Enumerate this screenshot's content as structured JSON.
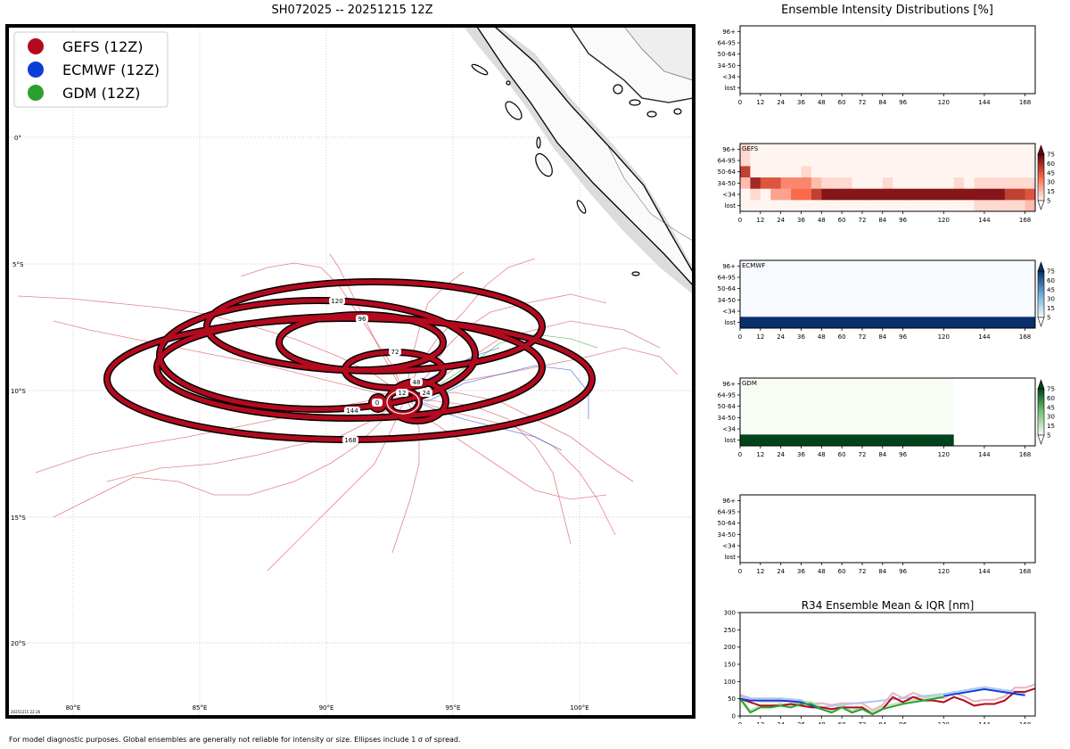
{
  "map": {
    "title": "SH072025 -- 20251215 12Z",
    "stamp": "20251215 22:26",
    "lon_ticks": [
      "80°E",
      "85°E",
      "90°E",
      "95°E",
      "100°E"
    ],
    "lat_ticks": [
      "0°",
      "5°S",
      "10°S",
      "15°S",
      "20°S"
    ],
    "legend": [
      {
        "label": "GEFS (12Z)",
        "color": "#b40a1e"
      },
      {
        "label": "ECMWF (12Z)",
        "color": "#0a3fd6"
      },
      {
        "label": "GDM (12Z)",
        "color": "#2ca02c"
      }
    ],
    "ellipse_labels": [
      "0",
      "12",
      "24",
      "48",
      "72",
      "96",
      "120",
      "144",
      "168"
    ]
  },
  "right_title": "Ensemble Intensity Distributions [%]",
  "footer": "For model diagnostic purposes. Global ensembles are generally not reliable for intensity or size. Ellipses include 1 σ of spread.",
  "panels": {
    "categories": [
      "96+",
      "64-95",
      "50-64",
      "34-50",
      "<34",
      "lost"
    ],
    "hours": [
      "0",
      "12",
      "24",
      "36",
      "48",
      "60",
      "72",
      "84",
      "96",
      "120",
      "144",
      "168"
    ],
    "hour_values": [
      0,
      12,
      24,
      36,
      48,
      60,
      72,
      84,
      96,
      120,
      144,
      168
    ],
    "colorbar_ticks": [
      "75",
      "60",
      "45",
      "30",
      "15",
      "5"
    ],
    "gefs_label": "GEFS",
    "ecmwf_label": "ECMWF",
    "gdm_label": "GDM"
  },
  "r34": {
    "title": "R34 Ensemble Mean & IQR [nm]",
    "y_ticks": [
      "300",
      "250",
      "200",
      "150",
      "100",
      "50",
      "0"
    ]
  },
  "chart_data": [
    {
      "type": "heatmap",
      "name": "GEFS",
      "x": [
        0,
        6,
        12,
        18,
        24,
        30,
        36,
        42,
        48,
        54,
        60,
        66,
        72,
        78,
        84,
        90,
        96,
        102,
        108,
        114,
        120,
        126,
        132,
        138,
        144,
        150,
        156,
        162,
        168
      ],
      "y_categories": [
        "96+",
        "64-95",
        "50-64",
        "34-50",
        "<34",
        "lost"
      ],
      "values_percent": [
        [
          10,
          0,
          0,
          0,
          0,
          0,
          0,
          0,
          0,
          0,
          0,
          0,
          0,
          0,
          0,
          0,
          0,
          0,
          0,
          0,
          0,
          0,
          0,
          0,
          0,
          0,
          0,
          0,
          0
        ],
        [
          10,
          0,
          0,
          0,
          0,
          0,
          0,
          0,
          0,
          0,
          0,
          0,
          0,
          0,
          0,
          0,
          0,
          0,
          0,
          0,
          0,
          0,
          0,
          0,
          0,
          0,
          0,
          0,
          0
        ],
        [
          70,
          0,
          0,
          0,
          0,
          0,
          10,
          0,
          0,
          0,
          0,
          0,
          0,
          0,
          0,
          0,
          0,
          0,
          0,
          0,
          0,
          0,
          0,
          0,
          0,
          0,
          0,
          0,
          0
        ],
        [
          20,
          80,
          60,
          60,
          40,
          40,
          40,
          20,
          10,
          10,
          10,
          0,
          0,
          0,
          10,
          0,
          0,
          0,
          0,
          0,
          0,
          10,
          0,
          10,
          10,
          10,
          10,
          10,
          10
        ],
        [
          0,
          10,
          0,
          30,
          30,
          50,
          50,
          70,
          90,
          90,
          90,
          90,
          90,
          90,
          90,
          90,
          90,
          90,
          90,
          90,
          90,
          90,
          90,
          90,
          90,
          90,
          70,
          70,
          60
        ],
        [
          0,
          0,
          0,
          0,
          0,
          0,
          0,
          0,
          0,
          0,
          0,
          0,
          0,
          0,
          0,
          0,
          0,
          0,
          0,
          0,
          0,
          0,
          0,
          10,
          10,
          10,
          10,
          10,
          20
        ]
      ]
    },
    {
      "type": "heatmap",
      "name": "ECMWF",
      "x": [
        0,
        168
      ],
      "y_categories": [
        "96+",
        "64-95",
        "50-64",
        "34-50",
        "<34",
        "lost"
      ],
      "values_percent": [
        [
          0,
          0
        ],
        [
          0,
          0
        ],
        [
          0,
          0
        ],
        [
          0,
          0
        ],
        [
          0,
          0
        ],
        [
          100,
          100
        ]
      ]
    },
    {
      "type": "heatmap",
      "name": "GDM",
      "x": [
        0,
        126
      ],
      "y_categories": [
        "96+",
        "64-95",
        "50-64",
        "34-50",
        "<34",
        "lost"
      ],
      "values_percent": [
        [
          0,
          0
        ],
        [
          0,
          0
        ],
        [
          0,
          0
        ],
        [
          0,
          0
        ],
        [
          0,
          0
        ],
        [
          100,
          100
        ]
      ]
    },
    {
      "type": "line",
      "title": "R34 Ensemble Mean & IQR [nm]",
      "ylim": [
        0,
        300
      ],
      "xlim": [
        0,
        174
      ],
      "series": [
        {
          "color": "#b40a1e",
          "x": [
            0,
            6,
            12,
            18,
            24,
            30,
            36,
            42,
            48,
            54,
            60,
            66,
            72,
            78,
            84,
            90,
            96,
            102,
            108,
            114,
            120,
            126,
            132,
            138,
            144,
            150,
            156,
            162,
            168,
            174
          ],
          "values": [
            50,
            40,
            30,
            30,
            30,
            35,
            30,
            25,
            25,
            20,
            25,
            25,
            25,
            5,
            20,
            55,
            40,
            55,
            45,
            45,
            40,
            55,
            45,
            30,
            35,
            35,
            45,
            70,
            70,
            80
          ]
        },
        {
          "color": "#0a3fd6",
          "x": [
            0,
            6,
            12,
            18,
            24,
            36,
            48,
            120,
            144,
            168
          ],
          "values": [
            50,
            45,
            45,
            45,
            45,
            40,
            20,
            58,
            78,
            60
          ]
        },
        {
          "color": "#2ca02c",
          "x": [
            0,
            6,
            12,
            18,
            24,
            30,
            36,
            42,
            48,
            54,
            60,
            66,
            72,
            78,
            84,
            96,
            108,
            120
          ],
          "values": [
            50,
            10,
            25,
            25,
            30,
            25,
            35,
            35,
            20,
            10,
            25,
            10,
            20,
            5,
            20,
            35,
            45,
            55
          ]
        }
      ]
    }
  ]
}
